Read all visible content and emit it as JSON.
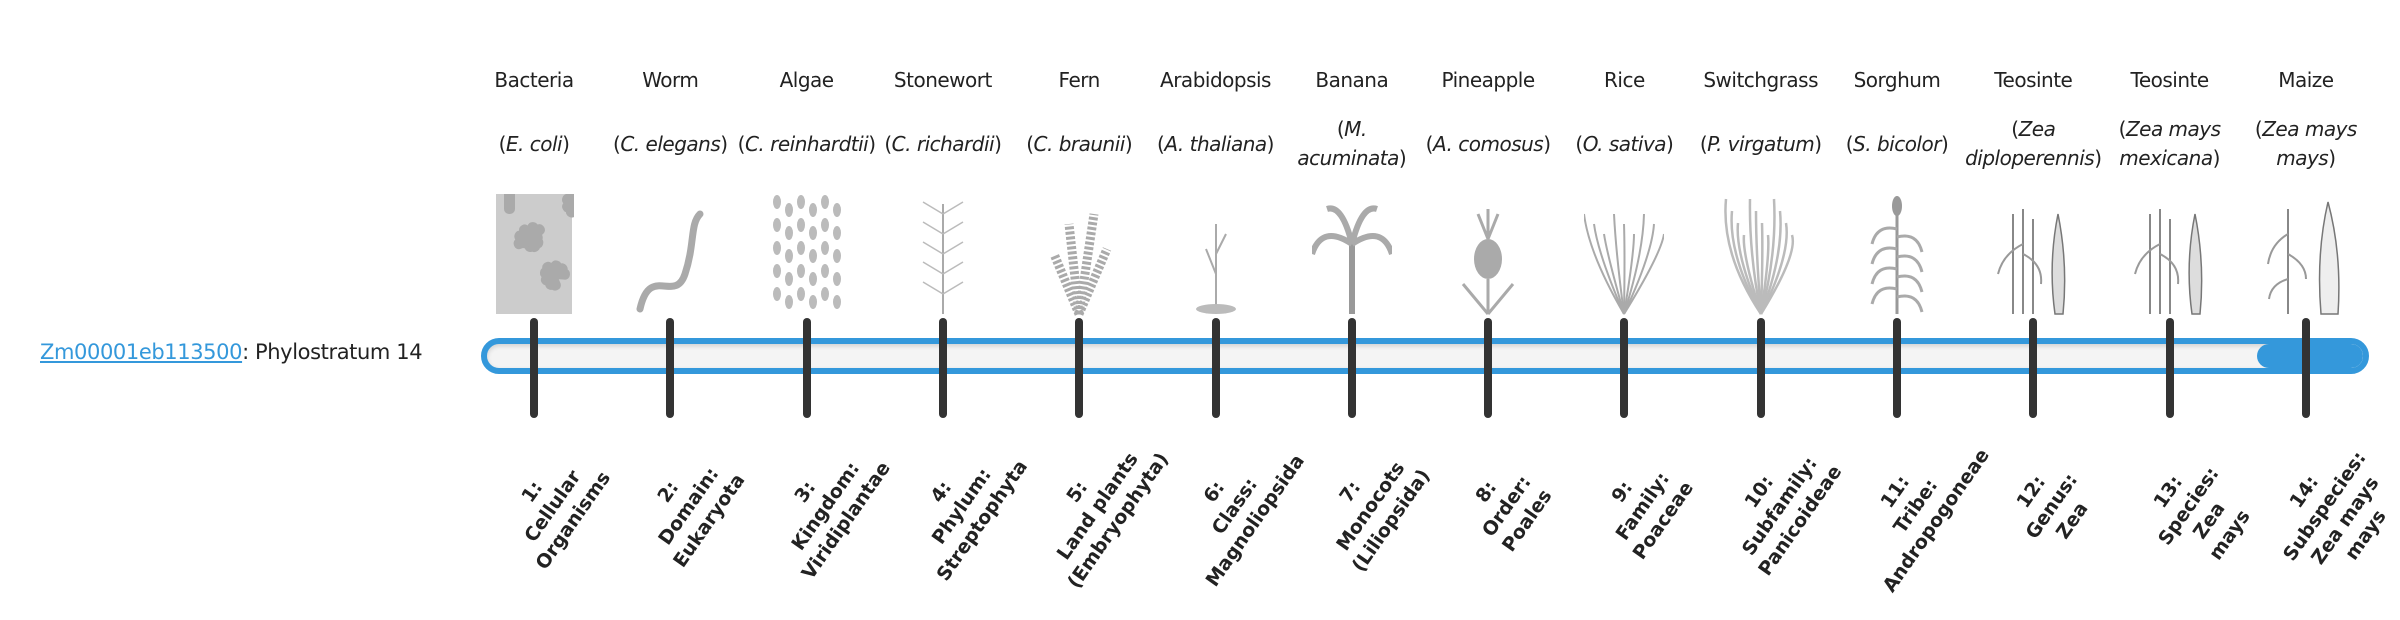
{
  "gene": {
    "id": "Zm00001eb113500",
    "suffix": ": Phylostratum 14"
  },
  "phylostratum": {
    "current": 14,
    "total": 14
  },
  "colors": {
    "accent": "#3498db",
    "tick": "#333333",
    "track": "#f4f4f4"
  },
  "organisms": [
    {
      "common": "Bacteria",
      "sci": "E. coli",
      "icon": "bacteria-icon"
    },
    {
      "common": "Worm",
      "sci": "C. elegans",
      "icon": "worm-icon"
    },
    {
      "common": "Algae",
      "sci": "C. reinhardtii",
      "icon": "algae-icon"
    },
    {
      "common": "Stonewort",
      "sci": "C. richardii",
      "icon": "stonewort-icon"
    },
    {
      "common": "Fern",
      "sci": "C. braunii",
      "icon": "fern-icon"
    },
    {
      "common": "Arabidopsis",
      "sci": "A. thaliana",
      "icon": "arabidopsis-icon"
    },
    {
      "common": "Banana",
      "sci": "M. acuminata",
      "icon": "banana-icon"
    },
    {
      "common": "Pineapple",
      "sci": "A. comosus",
      "icon": "pineapple-icon"
    },
    {
      "common": "Rice",
      "sci": "O. sativa",
      "icon": "rice-icon"
    },
    {
      "common": "Switchgrass",
      "sci": "P. virgatum",
      "icon": "switchgrass-icon"
    },
    {
      "common": "Sorghum",
      "sci": "S. bicolor",
      "icon": "sorghum-icon"
    },
    {
      "common": "Teosinte",
      "sci": "Zea diploperennis",
      "icon": "teosinte-icon"
    },
    {
      "common": "Teosinte",
      "sci": "Zea mays mexicana",
      "icon": "teosinte-icon"
    },
    {
      "common": "Maize",
      "sci": "Zea mays mays",
      "icon": "maize-icon"
    }
  ],
  "strata": [
    {
      "lines": [
        "1:",
        "Cellular",
        "Organisms"
      ]
    },
    {
      "lines": [
        "2:",
        "Domain:",
        "Eukaryota"
      ]
    },
    {
      "lines": [
        "3:",
        "Kingdom:",
        "Viridiplantae"
      ]
    },
    {
      "lines": [
        "4:",
        "Phylum:",
        "Streptophyta"
      ]
    },
    {
      "lines": [
        "5:",
        "Land plants",
        "(Embryophyta)"
      ]
    },
    {
      "lines": [
        "6:",
        "Class:",
        "Magnoliopsida"
      ]
    },
    {
      "lines": [
        "7:",
        "Monocots",
        "(Liliopsida)"
      ]
    },
    {
      "lines": [
        "8:",
        "Order:",
        "Poales"
      ]
    },
    {
      "lines": [
        "9:",
        "Family:",
        "Poaceae"
      ]
    },
    {
      "lines": [
        "10:",
        "Subfamily:",
        "Panicoideae"
      ]
    },
    {
      "lines": [
        "11:",
        "Tribe:",
        "Andropogoneae"
      ]
    },
    {
      "lines": [
        "12:",
        "Genus:",
        "Zea"
      ]
    },
    {
      "lines": [
        "13:",
        "Species:",
        "Zea",
        "mays"
      ]
    },
    {
      "lines": [
        "14:",
        "Subspecies:",
        "Zea mays",
        "mays"
      ]
    }
  ]
}
